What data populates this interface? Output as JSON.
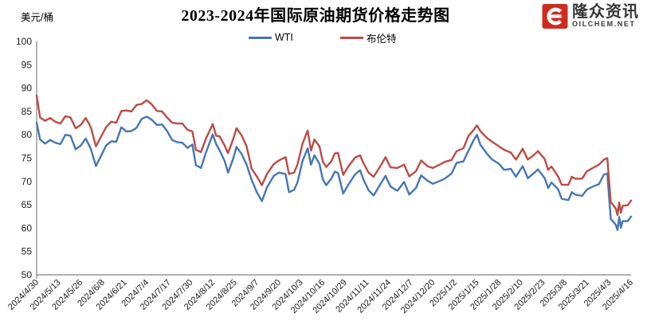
{
  "title": "2023-2024年国际原油期货价格走势图",
  "y_axis_unit": "美元/桶",
  "legend": {
    "wti_label": "WTI",
    "brent_label": "布伦特"
  },
  "logo": {
    "name": "隆众资讯",
    "site": "OILCHEM.NET",
    "icon_color": "#cf2b1f"
  },
  "colors": {
    "wti": "#4576b5",
    "brent": "#bd4b45",
    "axis": "#808080",
    "text": "#1a1a1a"
  },
  "chart_data": {
    "type": "line",
    "title": "2023-2024年国际原油期货价格走势图",
    "ylabel": "美元/桶",
    "ylim": [
      50,
      100
    ],
    "y_ticks": [
      50,
      55,
      60,
      65,
      70,
      75,
      80,
      85,
      90,
      95,
      100
    ],
    "grid": false,
    "legend_position": "top",
    "axis_color": "#808080",
    "x_tick_labels": [
      "2024/4/30",
      "2024/5/13",
      "2024/5/26",
      "2024/6/8",
      "2024/6/21",
      "2024/7/4",
      "2024/7/17",
      "2024/7/30",
      "2024/8/12",
      "2024/8/25",
      "2024/9/7",
      "2024/9/20",
      "2024/10/3",
      "2024/10/16",
      "2024/10/29",
      "2024/11/11",
      "2024/11/24",
      "2024/12/7",
      "2024/12/20",
      "2025/1/2",
      "2025/1/15",
      "2025/1/28",
      "2025/2/10",
      "2025/2/23",
      "2025/3/8",
      "2025/3/21",
      "2025/4/3",
      "2025/4/16"
    ],
    "dates": [
      "2024/4/30",
      "2024/5/2",
      "2024/5/5",
      "2024/5/8",
      "2024/5/11",
      "2024/5/14",
      "2024/5/17",
      "2024/5/20",
      "2024/5/23",
      "2024/5/26",
      "2024/5/29",
      "2024/6/1",
      "2024/6/4",
      "2024/6/7",
      "2024/6/10",
      "2024/6/13",
      "2024/6/16",
      "2024/6/19",
      "2024/6/22",
      "2024/6/25",
      "2024/6/28",
      "2024/7/1",
      "2024/7/4",
      "2024/7/7",
      "2024/7/10",
      "2024/7/13",
      "2024/7/16",
      "2024/7/19",
      "2024/7/22",
      "2024/7/25",
      "2024/7/28",
      "2024/7/31",
      "2024/8/2",
      "2024/8/5",
      "2024/8/8",
      "2024/8/12",
      "2024/8/14",
      "2024/8/16",
      "2024/8/19",
      "2024/8/21",
      "2024/8/24",
      "2024/8/26",
      "2024/8/29",
      "2024/9/1",
      "2024/9/4",
      "2024/9/7",
      "2024/9/10",
      "2024/9/13",
      "2024/9/17",
      "2024/9/20",
      "2024/9/24",
      "2024/9/26",
      "2024/9/29",
      "2024/10/1",
      "2024/10/4",
      "2024/10/7",
      "2024/10/9",
      "2024/10/11",
      "2024/10/14",
      "2024/10/16",
      "2024/10/18",
      "2024/10/21",
      "2024/10/23",
      "2024/10/25",
      "2024/10/28",
      "2024/10/31",
      "2024/11/4",
      "2024/11/7",
      "2024/11/9",
      "2024/11/12",
      "2024/11/15",
      "2024/11/19",
      "2024/11/22",
      "2024/11/25",
      "2024/11/29",
      "2024/12/3",
      "2024/12/6",
      "2024/12/10",
      "2024/12/13",
      "2024/12/17",
      "2024/12/20",
      "2024/12/24",
      "2024/12/27",
      "2024/12/31",
      "2025/1/3",
      "2025/1/7",
      "2025/1/10",
      "2025/1/13",
      "2025/1/15",
      "2025/1/17",
      "2025/1/21",
      "2025/1/24",
      "2025/1/28",
      "2025/1/31",
      "2025/2/4",
      "2025/2/7",
      "2025/2/11",
      "2025/2/14",
      "2025/2/18",
      "2025/2/20",
      "2025/2/24",
      "2025/2/26",
      "2025/2/28",
      "2025/3/4",
      "2025/3/6",
      "2025/3/10",
      "2025/3/12",
      "2025/3/14",
      "2025/3/18",
      "2025/3/21",
      "2025/3/25",
      "2025/3/28",
      "2025/3/31",
      "2025/4/2",
      "2025/4/4",
      "2025/4/7",
      "2025/4/8",
      "2025/4/9",
      "2025/4/10",
      "2025/4/11",
      "2025/4/14",
      "2025/4/16"
    ],
    "series": [
      {
        "name": "WTI",
        "color": "#4576b5",
        "values": [
          82.6,
          79.0,
          78.1,
          78.9,
          78.3,
          78.0,
          80.0,
          79.8,
          76.9,
          77.7,
          79.2,
          77.0,
          73.3,
          75.5,
          77.7,
          78.6,
          78.5,
          81.6,
          80.7,
          80.8,
          81.5,
          83.4,
          83.9,
          83.2,
          82.1,
          82.2,
          80.8,
          78.9,
          78.4,
          78.3,
          77.2,
          77.9,
          73.5,
          72.9,
          76.2,
          80.1,
          78.0,
          76.7,
          74.4,
          71.9,
          74.8,
          77.4,
          75.9,
          73.6,
          70.3,
          67.7,
          65.8,
          68.7,
          71.2,
          71.9,
          71.6,
          67.7,
          68.2,
          69.8,
          74.4,
          77.1,
          73.6,
          75.6,
          73.8,
          70.4,
          69.2,
          70.6,
          72.1,
          71.8,
          67.4,
          69.3,
          71.5,
          72.4,
          70.4,
          68.1,
          67.0,
          69.4,
          71.2,
          68.9,
          68.0,
          69.9,
          67.2,
          68.6,
          71.3,
          70.1,
          69.5,
          70.1,
          70.6,
          71.7,
          74.0,
          74.3,
          76.6,
          78.8,
          80.0,
          77.9,
          75.9,
          74.7,
          73.8,
          72.5,
          72.7,
          71.0,
          73.3,
          70.7,
          71.9,
          72.6,
          70.7,
          68.6,
          69.8,
          68.3,
          66.3,
          66.0,
          67.7,
          67.2,
          66.9,
          68.3,
          69.0,
          69.4,
          71.5,
          71.7,
          62.0,
          60.7,
          59.6,
          62.4,
          60.1,
          61.5,
          61.5,
          62.5
        ]
      },
      {
        "name": "布伦特",
        "color": "#bd4b45",
        "values": [
          88.4,
          83.7,
          83.0,
          83.6,
          82.8,
          82.4,
          84.0,
          83.7,
          81.4,
          82.1,
          83.6,
          81.6,
          77.5,
          79.6,
          81.6,
          82.8,
          82.6,
          85.1,
          85.2,
          85.0,
          86.4,
          86.6,
          87.4,
          86.5,
          85.1,
          85.0,
          83.7,
          82.6,
          82.4,
          82.4,
          81.1,
          80.7,
          76.8,
          76.3,
          79.2,
          82.3,
          79.8,
          79.7,
          77.7,
          76.1,
          79.0,
          81.4,
          79.9,
          77.5,
          72.7,
          71.1,
          69.2,
          71.6,
          73.7,
          74.5,
          75.2,
          71.6,
          71.9,
          73.6,
          78.1,
          80.9,
          76.6,
          79.0,
          77.5,
          74.2,
          73.1,
          74.3,
          76.0,
          76.1,
          71.4,
          73.2,
          75.1,
          75.6,
          73.9,
          71.9,
          71.0,
          73.3,
          75.2,
          73.0,
          72.9,
          73.6,
          71.1,
          72.2,
          74.5,
          73.2,
          72.9,
          73.6,
          74.2,
          74.6,
          76.5,
          77.1,
          79.8,
          81.0,
          82.0,
          80.8,
          79.3,
          78.5,
          77.5,
          76.8,
          76.2,
          74.7,
          77.0,
          74.7,
          75.8,
          76.5,
          74.8,
          72.5,
          73.2,
          71.0,
          69.3,
          69.3,
          71.0,
          70.6,
          70.6,
          72.2,
          73.0,
          73.6,
          74.7,
          75.0,
          65.6,
          64.2,
          62.8,
          65.5,
          63.3,
          64.8,
          64.9,
          65.9
        ]
      }
    ]
  }
}
